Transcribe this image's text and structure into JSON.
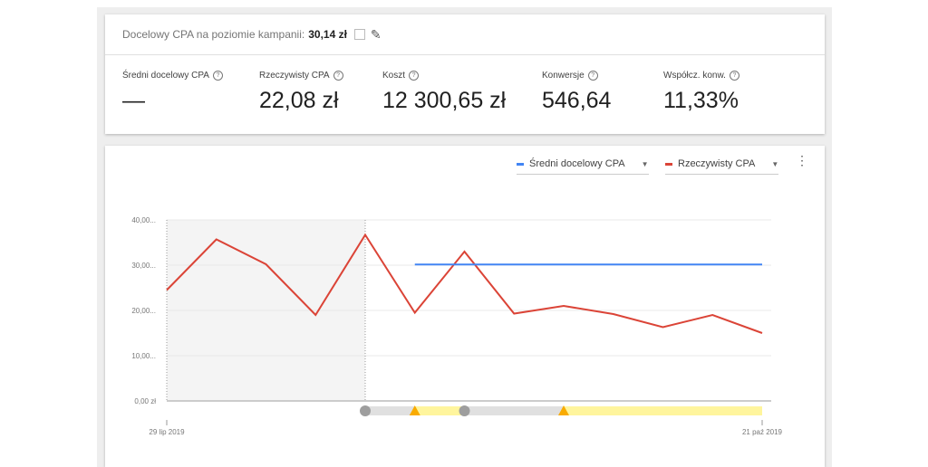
{
  "header": {
    "label": "Docelowy CPA na poziomie kampanii:",
    "value": "30,14 zł",
    "icons": [
      "chart-off-icon",
      "pencil-icon"
    ]
  },
  "metrics": [
    {
      "label": "Średni docelowy CPA",
      "value": "—"
    },
    {
      "label": "Rzeczywisty CPA",
      "value": "22,08 zł"
    },
    {
      "label": "Koszt",
      "value": "12 300,65 zł"
    },
    {
      "label": "Konwersje",
      "value": "546,64"
    },
    {
      "label": "Współcz. konw.",
      "value": "11,33%"
    }
  ],
  "legend": [
    {
      "name": "Średni docelowy CPA",
      "color": "#4285f4"
    },
    {
      "name": "Rzeczywisty CPA",
      "color": "#db4437"
    }
  ],
  "chart_data": {
    "type": "line",
    "yticks": [
      "0,00 zł",
      "10,00...",
      "20,00...",
      "30,00...",
      "40,00..."
    ],
    "ylim": [
      0,
      40
    ],
    "x_start_label": "29 lip 2019",
    "x_end_label": "21 paź 2019",
    "grid": true,
    "series": [
      {
        "name": "Rzeczywisty CPA",
        "color": "#db4437",
        "values": [
          24.5,
          35.7,
          30.2,
          19,
          36.7,
          19.5,
          33,
          19.3,
          21,
          19.2,
          16.3,
          19,
          15
        ]
      },
      {
        "name": "Średni docelowy CPA",
        "color": "#4285f4",
        "values": [
          null,
          null,
          null,
          null,
          null,
          30.14,
          30.14,
          30.14,
          30.14,
          30.14,
          30.14,
          30.14,
          30.14
        ]
      }
    ],
    "shaded_range": [
      0,
      4
    ],
    "timeline": {
      "markers": [
        4,
        6
      ],
      "warnings": [
        5,
        8
      ],
      "yellow_ranges": [
        [
          5,
          6
        ],
        [
          8,
          12
        ]
      ],
      "grey_ranges": [
        [
          4,
          5
        ],
        [
          6,
          8
        ]
      ]
    }
  }
}
